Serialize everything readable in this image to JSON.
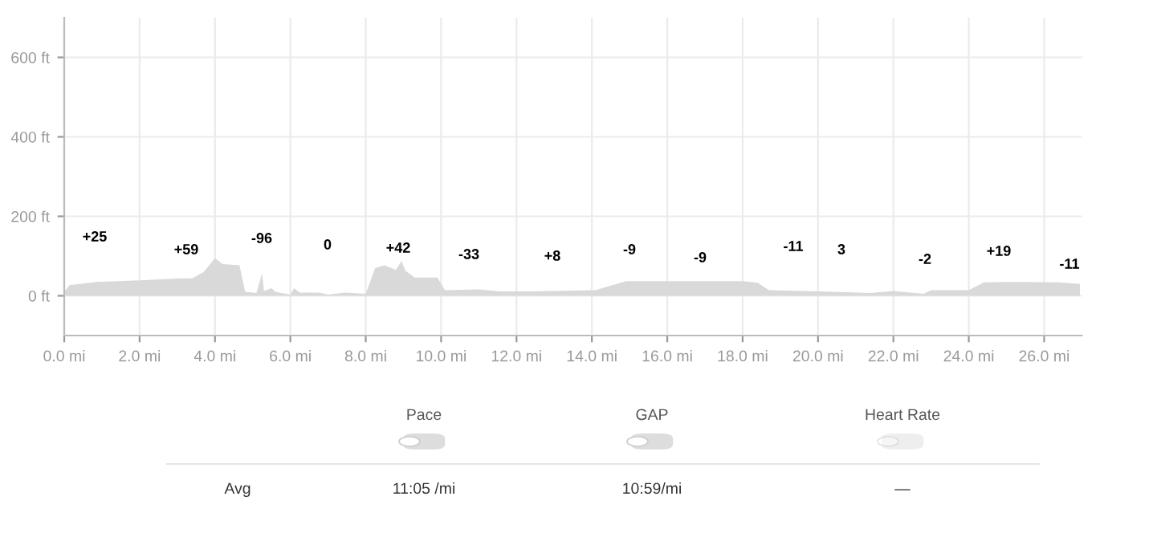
{
  "chart_data": {
    "type": "area",
    "color": "#d9d9d9",
    "x": [
      0,
      0.14,
      0.85,
      2.0,
      3.1,
      3.4,
      3.7,
      4.0,
      4.2,
      4.65,
      4.8,
      5.1,
      5.25,
      5.3,
      5.5,
      5.6,
      6.0,
      6.1,
      6.25,
      6.75,
      7.0,
      7.45,
      8.0,
      8.25,
      8.5,
      8.8,
      8.95,
      9.05,
      9.3,
      9.9,
      10.1,
      11.0,
      11.55,
      12.4,
      14.1,
      14.9,
      15.6,
      18.0,
      18.4,
      18.7,
      20.0,
      21.4,
      22.0,
      22.8,
      23.0,
      24.0,
      24.4,
      25.1,
      26.4,
      26.95
    ],
    "values": [
      10,
      27,
      35,
      39,
      44,
      44,
      60,
      95,
      80,
      77,
      10,
      7,
      57,
      12,
      19,
      10,
      3,
      19,
      8,
      8,
      3,
      8,
      5,
      70,
      77,
      65,
      88,
      63,
      46,
      46,
      14,
      16,
      11,
      11,
      14,
      37,
      37,
      37,
      33,
      14,
      11,
      7,
      12,
      5,
      14,
      14,
      34,
      35,
      34,
      30
    ],
    "xlim": [
      0,
      27
    ],
    "ylim": [
      -100,
      700
    ],
    "xticks": [
      {
        "value": 0,
        "label": "0.0 mi"
      },
      {
        "value": 2,
        "label": "2.0 mi"
      },
      {
        "value": 4,
        "label": "4.0 mi"
      },
      {
        "value": 6,
        "label": "6.0 mi"
      },
      {
        "value": 8,
        "label": "8.0 mi"
      },
      {
        "value": 10,
        "label": "10.0 mi"
      },
      {
        "value": 12,
        "label": "12.0 mi"
      },
      {
        "value": 14,
        "label": "14.0 mi"
      },
      {
        "value": 16,
        "label": "16.0 mi"
      },
      {
        "value": 18,
        "label": "18.0 mi"
      },
      {
        "value": 20,
        "label": "20.0 mi"
      },
      {
        "value": 22,
        "label": "22.0 mi"
      },
      {
        "value": 24,
        "label": "24.0 mi"
      },
      {
        "value": 26,
        "label": "26.0 mi"
      }
    ],
    "yticks": [
      {
        "value": 0,
        "label": "0 ft"
      },
      {
        "value": 200,
        "label": "200 ft"
      },
      {
        "value": 400,
        "label": "400 ft"
      },
      {
        "value": 600,
        "label": "600 ft"
      }
    ],
    "grid": true,
    "annotations": [
      "+25",
      "+59",
      "-96",
      "0",
      "+42",
      "-33",
      "+8",
      "-9",
      "-9",
      "-11",
      "3",
      "-2",
      "+19",
      "-11",
      "Pace",
      "GAP",
      "Heart Rate",
      "Avg",
      "11:05 /mi",
      "10:59/mi",
      "—"
    ]
  }
}
